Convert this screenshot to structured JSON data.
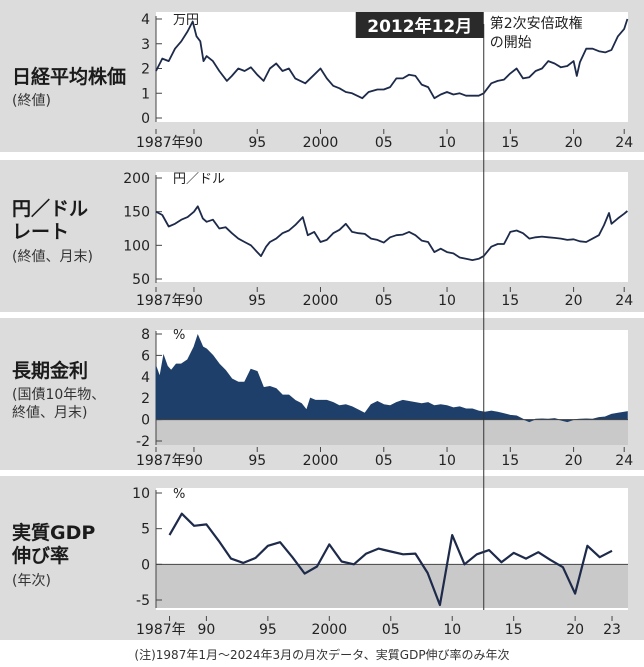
{
  "annotation": {
    "date_label": "2012年12月",
    "event_label_line1": "第2次安倍政権",
    "event_label_line2": "の開始",
    "x": 2012.9
  },
  "note": "(注)1987年1月〜2024年3月の月次データ、実質GDP伸び率のみ年次",
  "colors": {
    "line": "#1d2a4a",
    "area": "#1f3f6b",
    "background": "#dcdcdc",
    "plot_background": "#ffffff",
    "label_box": "#2a2a2a"
  },
  "panels": [
    {
      "title": "日経平均株価",
      "subtitle": "(終値)",
      "unit": "万円"
    },
    {
      "title": "円／ドル\nレート",
      "subtitle": "(終値、月末)",
      "unit": "円／ドル"
    },
    {
      "title": "長期金利",
      "subtitle": "(国債10年物、\n終値、月末)",
      "unit": "%"
    },
    {
      "title": "実質GDP\n伸び率",
      "subtitle": "(年次)",
      "unit": "%"
    }
  ],
  "chart_data": [
    {
      "type": "line",
      "title": "日経平均株価",
      "ylabel": "万円",
      "xlim": [
        1987,
        2024.3
      ],
      "ylim": [
        0,
        4
      ],
      "yticks": [
        0,
        1,
        2,
        3,
        4
      ],
      "xtick_labels": [
        "1987年",
        "90",
        "95",
        "2000",
        "05",
        "10",
        "15",
        "20",
        "24"
      ],
      "x": [
        1987.0,
        1987.5,
        1988.0,
        1988.5,
        1989.0,
        1989.5,
        1989.9,
        1990.2,
        1990.5,
        1990.75,
        1991.0,
        1991.5,
        1992.0,
        1992.6,
        1993.0,
        1993.5,
        1994.0,
        1994.5,
        1995.0,
        1995.5,
        1996.0,
        1996.5,
        1997.0,
        1997.5,
        1998.0,
        1998.8,
        1999.5,
        2000.0,
        2000.5,
        2001.0,
        2001.5,
        2002.0,
        2002.5,
        2003.3,
        2003.8,
        2004.5,
        2005.0,
        2005.5,
        2006.0,
        2006.5,
        2007.0,
        2007.5,
        2008.0,
        2008.5,
        2009.0,
        2009.5,
        2010.0,
        2010.5,
        2011.0,
        2011.5,
        2012.0,
        2012.5,
        2012.9,
        2013.5,
        2014.0,
        2014.5,
        2015.0,
        2015.5,
        2016.0,
        2016.5,
        2017.0,
        2017.5,
        2018.0,
        2018.5,
        2019.0,
        2019.5,
        2020.0,
        2020.25,
        2020.5,
        2021.0,
        2021.5,
        2022.0,
        2022.5,
        2023.0,
        2023.5,
        2024.0,
        2024.25
      ],
      "values": [
        1.9,
        2.4,
        2.3,
        2.8,
        3.1,
        3.5,
        3.9,
        3.3,
        3.1,
        2.3,
        2.5,
        2.3,
        1.9,
        1.5,
        1.7,
        2.0,
        1.9,
        2.05,
        1.75,
        1.5,
        2.0,
        2.2,
        1.9,
        2.0,
        1.6,
        1.4,
        1.75,
        2.0,
        1.6,
        1.3,
        1.2,
        1.05,
        1.0,
        0.8,
        1.05,
        1.15,
        1.15,
        1.25,
        1.6,
        1.6,
        1.75,
        1.7,
        1.35,
        1.25,
        0.8,
        0.95,
        1.05,
        0.95,
        1.0,
        0.9,
        0.9,
        0.9,
        1.0,
        1.4,
        1.5,
        1.55,
        1.8,
        2.0,
        1.6,
        1.65,
        1.9,
        2.0,
        2.3,
        2.2,
        2.05,
        2.1,
        2.3,
        1.7,
        2.25,
        2.8,
        2.8,
        2.7,
        2.65,
        2.75,
        3.3,
        3.6,
        4.0
      ]
    },
    {
      "type": "line",
      "title": "円／ドルレート",
      "ylabel": "円／ドル",
      "xlim": [
        1987,
        2024.3
      ],
      "ylim": [
        50,
        200
      ],
      "yticks": [
        50,
        100,
        150,
        200
      ],
      "xtick_labels": [
        "1987年",
        "90",
        "95",
        "2000",
        "05",
        "10",
        "15",
        "20",
        "24"
      ],
      "x": [
        1987.0,
        1987.5,
        1988.0,
        1988.5,
        1989.0,
        1989.5,
        1990.0,
        1990.3,
        1990.7,
        1991.0,
        1991.5,
        1992.0,
        1992.5,
        1993.0,
        1993.5,
        1994.0,
        1994.5,
        1995.0,
        1995.3,
        1995.7,
        1996.0,
        1996.5,
        1997.0,
        1997.5,
        1998.0,
        1998.6,
        1999.0,
        1999.5,
        2000.0,
        2000.5,
        2001.0,
        2001.5,
        2002.0,
        2002.5,
        2003.0,
        2003.5,
        2004.0,
        2004.5,
        2005.0,
        2005.5,
        2006.0,
        2006.5,
        2007.0,
        2007.5,
        2008.0,
        2008.5,
        2009.0,
        2009.5,
        2010.0,
        2010.5,
        2011.0,
        2011.5,
        2012.0,
        2012.5,
        2012.9,
        2013.5,
        2014.0,
        2014.5,
        2015.0,
        2015.5,
        2016.0,
        2016.5,
        2017.0,
        2017.5,
        2018.0,
        2018.5,
        2019.0,
        2019.5,
        2020.0,
        2020.5,
        2021.0,
        2021.5,
        2022.0,
        2022.4,
        2022.8,
        2023.0,
        2023.5,
        2024.0,
        2024.25
      ],
      "values": [
        150,
        145,
        128,
        132,
        138,
        142,
        150,
        158,
        140,
        135,
        138,
        125,
        127,
        118,
        110,
        105,
        100,
        90,
        84,
        98,
        105,
        110,
        118,
        122,
        130,
        142,
        115,
        120,
        105,
        108,
        118,
        123,
        132,
        120,
        118,
        117,
        110,
        108,
        104,
        112,
        115,
        116,
        120,
        115,
        107,
        105,
        90,
        95,
        90,
        88,
        82,
        80,
        78,
        80,
        84,
        98,
        102,
        102,
        120,
        122,
        118,
        110,
        112,
        113,
        112,
        111,
        110,
        108,
        109,
        106,
        105,
        110,
        115,
        130,
        148,
        132,
        140,
        147,
        151
      ]
    },
    {
      "type": "area",
      "title": "長期金利",
      "ylabel": "%",
      "xlim": [
        1987,
        2024.3
      ],
      "ylim": [
        -2,
        8
      ],
      "yticks": [
        -2,
        0,
        2,
        4,
        6,
        8
      ],
      "xtick_labels": [
        "1987年",
        "90",
        "95",
        "2000",
        "05",
        "10",
        "15",
        "20",
        "24"
      ],
      "x": [
        1987.0,
        1987.3,
        1987.6,
        1987.9,
        1988.2,
        1988.6,
        1989.0,
        1989.5,
        1990.0,
        1990.3,
        1990.7,
        1991.0,
        1991.5,
        1992.0,
        1992.5,
        1993.0,
        1993.5,
        1994.0,
        1994.5,
        1995.0,
        1995.5,
        1996.0,
        1996.5,
        1997.0,
        1997.5,
        1998.0,
        1998.5,
        1998.9,
        1999.2,
        1999.6,
        2000.0,
        2000.5,
        2001.0,
        2001.5,
        2002.0,
        2002.5,
        2003.0,
        2003.5,
        2004.0,
        2004.5,
        2005.0,
        2005.5,
        2006.0,
        2006.5,
        2007.0,
        2007.5,
        2008.0,
        2008.5,
        2009.0,
        2009.5,
        2010.0,
        2010.5,
        2011.0,
        2011.5,
        2012.0,
        2012.5,
        2013.0,
        2013.5,
        2014.0,
        2014.5,
        2015.0,
        2015.5,
        2016.0,
        2016.5,
        2017.0,
        2017.5,
        2018.0,
        2018.5,
        2019.0,
        2019.5,
        2020.0,
        2020.5,
        2021.0,
        2021.5,
        2022.0,
        2022.5,
        2023.0,
        2023.5,
        2024.0,
        2024.25
      ],
      "values": [
        5.0,
        4.0,
        6.0,
        5.0,
        4.6,
        5.2,
        5.2,
        5.6,
        6.8,
        7.9,
        6.8,
        6.6,
        6.0,
        5.2,
        4.6,
        3.8,
        3.5,
        3.5,
        4.7,
        4.5,
        3.0,
        3.1,
        2.9,
        2.3,
        2.3,
        1.8,
        1.5,
        0.9,
        2.0,
        1.8,
        1.8,
        1.8,
        1.6,
        1.3,
        1.4,
        1.2,
        0.9,
        0.6,
        1.4,
        1.7,
        1.4,
        1.3,
        1.6,
        1.8,
        1.7,
        1.6,
        1.5,
        1.6,
        1.3,
        1.4,
        1.3,
        1.1,
        1.2,
        1.0,
        1.0,
        0.8,
        0.7,
        0.8,
        0.7,
        0.55,
        0.4,
        0.35,
        0.05,
        -0.2,
        0.05,
        0.07,
        0.05,
        0.1,
        -0.05,
        -0.2,
        0.0,
        0.05,
        0.07,
        0.05,
        0.2,
        0.25,
        0.5,
        0.6,
        0.7,
        0.75
      ]
    },
    {
      "type": "line",
      "title": "実質GDP伸び率",
      "ylabel": "%",
      "xlim": [
        1985.9,
        2024.3
      ],
      "ylim": [
        -5,
        10
      ],
      "yticks": [
        -5,
        0,
        5,
        10
      ],
      "xtick_labels": [
        "1987年",
        "90",
        "95",
        "2000",
        "05",
        "10",
        "15",
        "20",
        "23"
      ],
      "x": [
        1987,
        1988,
        1989,
        1990,
        1991,
        1992,
        1993,
        1994,
        1995,
        1996,
        1997,
        1998,
        1999,
        2000,
        2001,
        2002,
        2003,
        2004,
        2005,
        2006,
        2007,
        2008,
        2009,
        2010,
        2011,
        2012,
        2013,
        2014,
        2015,
        2016,
        2017,
        2018,
        2019,
        2020,
        2021,
        2022,
        2023
      ],
      "values": [
        4.1,
        7.1,
        5.4,
        5.6,
        3.3,
        0.8,
        0.2,
        0.9,
        2.6,
        3.1,
        1.0,
        -1.3,
        -0.3,
        2.8,
        0.4,
        0.0,
        1.5,
        2.2,
        1.8,
        1.4,
        1.5,
        -1.2,
        -5.7,
        4.1,
        0.0,
        1.4,
        2.0,
        0.3,
        1.6,
        0.8,
        1.7,
        0.6,
        -0.4,
        -4.1,
        2.6,
        1.0,
        1.9
      ]
    }
  ]
}
